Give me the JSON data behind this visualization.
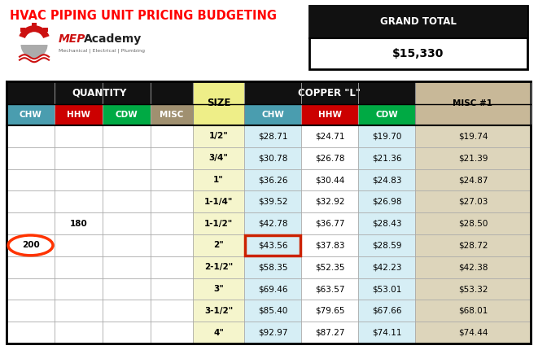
{
  "title": "HVAC PIPING UNIT PRICING BUDGETING",
  "title_color": "#FF0000",
  "grand_total_label": "GRAND TOTAL",
  "grand_total_value": "$15,330",
  "sizes": [
    "1/2\"",
    "3/4\"",
    "1\"",
    "1-1/4\"",
    "1-1/2\"",
    "2\"",
    "2-1/2\"",
    "3\"",
    "3-1/2\"",
    "4\""
  ],
  "chw_color": "#4A9DAF",
  "hhw_color": "#CC0000",
  "cdw_color": "#00AA44",
  "misc_header_color": "#A09070",
  "misc_data_color": "#C8B898",
  "size_color": "#EEEE88",
  "size_data_color": "#F5F5CC",
  "header_bg": "#111111",
  "quantity_values": [
    [
      "",
      "",
      "",
      ""
    ],
    [
      "",
      "",
      "",
      ""
    ],
    [
      "",
      "",
      "",
      ""
    ],
    [
      "",
      "",
      "",
      ""
    ],
    [
      "",
      "180",
      "",
      ""
    ],
    [
      "200",
      "",
      "",
      ""
    ],
    [
      "",
      "",
      "",
      ""
    ],
    [
      "",
      "",
      "",
      ""
    ],
    [
      "",
      "",
      "",
      ""
    ],
    [
      "",
      "",
      "",
      ""
    ]
  ],
  "copper_chw": [
    "$28.71",
    "$30.78",
    "$36.26",
    "$39.52",
    "$42.78",
    "$43.56",
    "$58.35",
    "$69.46",
    "$85.40",
    "$92.97"
  ],
  "copper_hhw": [
    "$24.71",
    "$26.78",
    "$30.44",
    "$32.92",
    "$36.77",
    "$37.83",
    "$52.35",
    "$63.57",
    "$79.65",
    "$87.27"
  ],
  "copper_cdw": [
    "$19.70",
    "$21.36",
    "$24.83",
    "$26.98",
    "$28.43",
    "$28.59",
    "$42.23",
    "$53.01",
    "$67.66",
    "$74.11"
  ],
  "misc1": [
    "$19.74",
    "$21.39",
    "$24.87",
    "$27.03",
    "$28.50",
    "$28.72",
    "$42.38",
    "$53.32",
    "$68.01",
    "$74.44"
  ],
  "highlight_row": 5,
  "circle_row": 5,
  "hhw_qty_row": 4
}
